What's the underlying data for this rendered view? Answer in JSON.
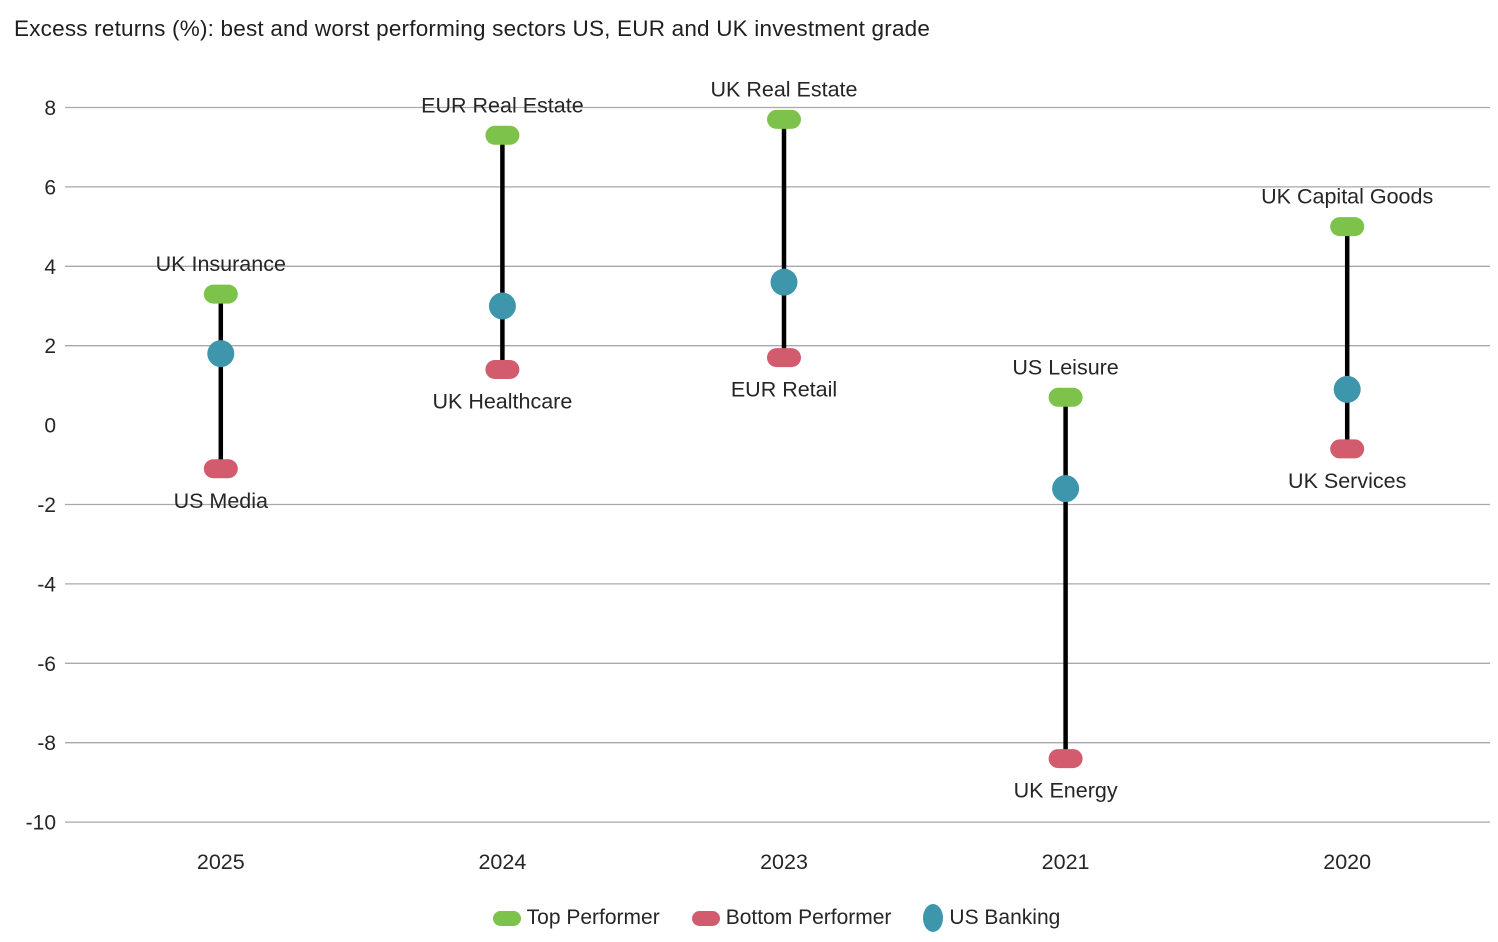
{
  "title": "Excess returns (%): best and worst performing sectors US, EUR and UK investment grade",
  "chart_data": {
    "type": "dumbbell-range",
    "title": "Excess returns (%): best and worst performing sectors US, EUR and UK investment grade",
    "categories": [
      "2025",
      "2024",
      "2023",
      "2021",
      "2020"
    ],
    "points": [
      {
        "year": "2025",
        "top_label": "UK Insurance",
        "top": 3.3,
        "bottom_label": "US Media",
        "bottom": -1.1,
        "us_banking": 1.8
      },
      {
        "year": "2024",
        "top_label": "EUR Real Estate",
        "top": 7.3,
        "bottom_label": "UK Healthcare",
        "bottom": 1.4,
        "us_banking": 3.0
      },
      {
        "year": "2023",
        "top_label": "UK Real Estate",
        "top": 7.7,
        "bottom_label": "EUR Retail",
        "bottom": 1.7,
        "us_banking": 3.6
      },
      {
        "year": "2021",
        "top_label": "US Leisure",
        "top": 0.7,
        "bottom_label": "UK Energy",
        "bottom": -8.4,
        "us_banking": -1.6
      },
      {
        "year": "2020",
        "top_label": "UK Capital Goods",
        "top": 5.0,
        "bottom_label": "UK Services",
        "bottom": -0.6,
        "us_banking": 0.9
      }
    ],
    "ylim": [
      -10,
      8
    ],
    "yticks": [
      8,
      6,
      4,
      2,
      0,
      -2,
      -4,
      -6,
      -8,
      -10
    ],
    "gridline_skip": [
      0
    ],
    "grid_on": true,
    "legend_position": "bottom-center",
    "legend": [
      {
        "label": "Top Performer",
        "color": "#7DC24B",
        "shape": "pill"
      },
      {
        "label": "Bottom Performer",
        "color": "#D25C6E",
        "shape": "pill"
      },
      {
        "label": "US Banking",
        "color": "#3E96AC",
        "shape": "ellipse"
      }
    ],
    "colors": {
      "top": "#7DC24B",
      "bottom": "#D25C6E",
      "banking": "#3E96AC",
      "range_line": "#000000",
      "grid": "#A9A9A9",
      "text": "#262626"
    }
  }
}
